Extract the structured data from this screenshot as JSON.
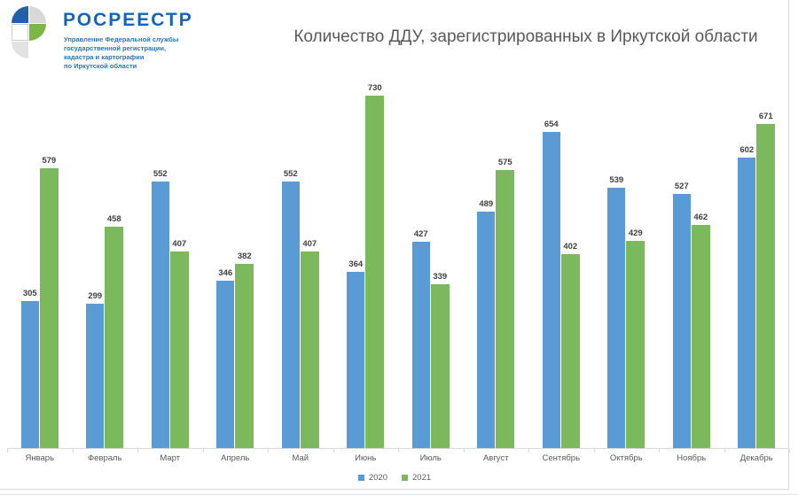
{
  "logo": {
    "brand": "РОСРЕЕСТР",
    "subtitle_lines": [
      "Управление Федеральной службы",
      "государственной регистрации,",
      "кадастра и картографии",
      "по Иркутской области"
    ],
    "colors": {
      "brand_text": "#1565b4",
      "subtitle_text": "#2476be",
      "mark_blue": "#2460a7",
      "mark_green": "#7cb647",
      "mark_gray": "#d9d9d9",
      "mark_gray_light": "#e2e2e2"
    }
  },
  "title": "Количество ДДУ, зарегистрированных в Иркутской области",
  "chart_data": {
    "type": "bar",
    "title": "Количество ДДУ, зарегистрированных в Иркутской области",
    "categories": [
      "Январь",
      "Февраль",
      "Март",
      "Апрель",
      "Май",
      "Июнь",
      "Июль",
      "Август",
      "Сентябрь",
      "Октябрь",
      "Ноябрь",
      "Декабрь"
    ],
    "series": [
      {
        "name": "2020",
        "color": "#5b9bd5",
        "values": [
          305,
          299,
          552,
          346,
          552,
          364,
          427,
          489,
          654,
          539,
          527,
          602
        ]
      },
      {
        "name": "2021",
        "color": "#7cb85c",
        "values": [
          579,
          458,
          407,
          382,
          407,
          730,
          339,
          575,
          402,
          429,
          462,
          671
        ]
      }
    ],
    "xlabel": "",
    "ylabel": "",
    "ylim": [
      0,
      770
    ],
    "grid": false,
    "value_labels": true,
    "legend_position": "bottom",
    "value_label_color": "#404040",
    "axis_text_color": "#595959"
  }
}
